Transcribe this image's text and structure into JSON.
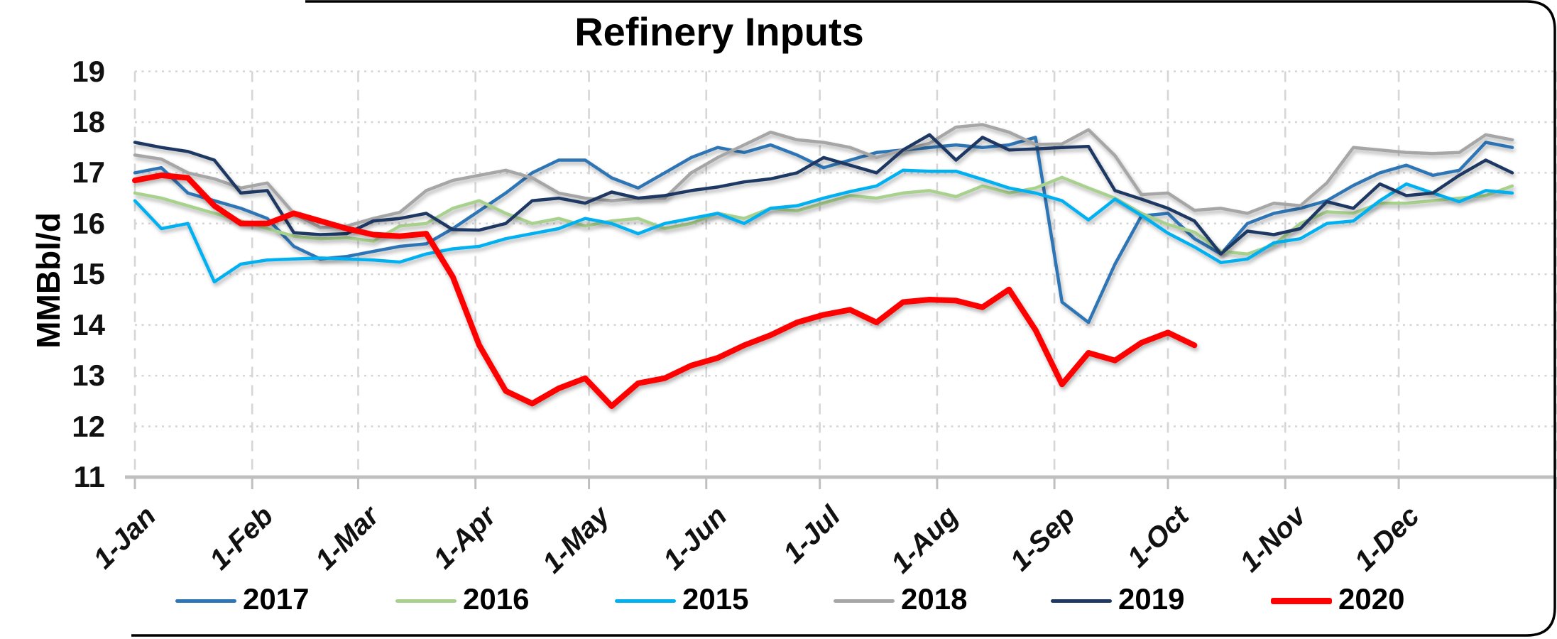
{
  "title": "Refinery Inputs",
  "y_axis_label": "MMBbl/d",
  "chart_data": {
    "type": "line",
    "title": "Refinery Inputs",
    "xlabel": "",
    "ylabel": "MMBbl/d",
    "ylim": [
      11,
      19
    ],
    "y_ticks": [
      19,
      18,
      17,
      16,
      15,
      14,
      13,
      12,
      11
    ],
    "x_tick_labels": [
      "1-Jan",
      "1-Feb",
      "1-Mar",
      "1-Apr",
      "1-May",
      "1-Jun",
      "1-Jul",
      "1-Aug",
      "1-Sep",
      "1-Oct",
      "1-Nov",
      "1-Dec"
    ],
    "month_start_weeks": [
      0,
      4.4286,
      8.4286,
      12.857,
      17.143,
      21.571,
      25.857,
      30.286,
      34.714,
      39,
      43.429,
      47.714
    ],
    "x_unit": "weeks (weekly data, Jan 1 = week 0)",
    "grid": {
      "horizontal": "dotted",
      "vertical": "dashed-at-month-starts"
    },
    "legend_position": "bottom",
    "axis_color": "#BFBFBF",
    "grid_color": "#D6D6D6",
    "series": [
      {
        "name": "2017",
        "color": "#2E75B6",
        "width": 4.5,
        "values": [
          17.0,
          17.1,
          16.6,
          16.45,
          16.3,
          16.1,
          15.55,
          15.3,
          15.35,
          15.45,
          15.55,
          15.6,
          15.9,
          16.25,
          16.6,
          17.0,
          17.25,
          17.25,
          16.9,
          16.7,
          17.0,
          17.3,
          17.5,
          17.4,
          17.55,
          17.35,
          17.1,
          17.25,
          17.4,
          17.45,
          17.5,
          17.55,
          17.5,
          17.55,
          17.7,
          14.45,
          14.05,
          15.2,
          16.15,
          16.2,
          15.7,
          15.4,
          16.0,
          16.2,
          16.3,
          16.45,
          16.75,
          17.0,
          17.15,
          16.95,
          17.05,
          17.6,
          17.5
        ]
      },
      {
        "name": "2016",
        "color": "#A9D18E",
        "width": 4.5,
        "values": [
          16.6,
          16.5,
          16.35,
          16.2,
          16.05,
          15.9,
          15.75,
          15.7,
          15.72,
          15.65,
          15.95,
          16.0,
          16.3,
          16.45,
          16.2,
          16.0,
          16.1,
          15.95,
          16.05,
          16.1,
          15.9,
          16.0,
          16.2,
          16.1,
          16.3,
          16.25,
          16.4,
          16.55,
          16.5,
          16.6,
          16.65,
          16.53,
          16.74,
          16.6,
          16.7,
          16.91,
          16.7,
          16.5,
          16.2,
          15.98,
          15.83,
          15.45,
          15.4,
          15.58,
          16.0,
          16.23,
          16.2,
          16.4,
          16.4,
          16.45,
          16.5,
          16.55,
          16.74
        ]
      },
      {
        "name": "2015",
        "color": "#00B0F0",
        "width": 4.5,
        "values": [
          16.45,
          15.9,
          16.0,
          14.85,
          15.2,
          15.28,
          15.3,
          15.32,
          15.3,
          15.28,
          15.24,
          15.4,
          15.5,
          15.55,
          15.7,
          15.8,
          15.9,
          16.1,
          16.0,
          15.8,
          16.0,
          16.1,
          16.2,
          16.0,
          16.3,
          16.35,
          16.5,
          16.63,
          16.74,
          17.05,
          17.03,
          17.03,
          16.87,
          16.7,
          16.6,
          16.45,
          16.07,
          16.48,
          16.16,
          15.81,
          15.54,
          15.23,
          15.3,
          15.62,
          15.7,
          16.0,
          16.05,
          16.45,
          16.78,
          16.6,
          16.43,
          16.65,
          16.6
        ]
      },
      {
        "name": "2018",
        "color": "#A6A6A6",
        "width": 4.5,
        "values": [
          17.35,
          17.27,
          17.0,
          16.88,
          16.7,
          16.8,
          16.2,
          15.92,
          15.95,
          16.1,
          16.22,
          16.65,
          16.85,
          16.95,
          17.05,
          16.9,
          16.6,
          16.5,
          16.45,
          16.5,
          16.5,
          17.0,
          17.3,
          17.55,
          17.8,
          17.65,
          17.6,
          17.5,
          17.3,
          17.45,
          17.58,
          17.9,
          17.95,
          17.8,
          17.56,
          17.57,
          17.85,
          17.34,
          16.57,
          16.6,
          16.26,
          16.3,
          16.2,
          16.4,
          16.35,
          16.8,
          17.5,
          17.45,
          17.4,
          17.38,
          17.4,
          17.75,
          17.65
        ]
      },
      {
        "name": "2019",
        "color": "#1F3864",
        "width": 4.5,
        "values": [
          17.6,
          17.5,
          17.42,
          17.25,
          16.6,
          16.65,
          15.82,
          15.78,
          15.8,
          16.05,
          16.1,
          16.2,
          15.88,
          15.87,
          16.0,
          16.45,
          16.5,
          16.4,
          16.62,
          16.5,
          16.55,
          16.65,
          16.72,
          16.82,
          16.88,
          17.0,
          17.3,
          17.15,
          17.0,
          17.45,
          17.75,
          17.25,
          17.7,
          17.45,
          17.47,
          17.5,
          17.52,
          16.65,
          16.48,
          16.3,
          16.05,
          15.4,
          15.85,
          15.78,
          15.9,
          16.43,
          16.3,
          16.78,
          16.55,
          16.6,
          16.95,
          17.25,
          17.0
        ]
      },
      {
        "name": "2020",
        "color": "#FF0000",
        "width": 8,
        "values": [
          16.85,
          16.95,
          16.9,
          16.35,
          16.0,
          16.0,
          16.2,
          16.05,
          15.9,
          15.78,
          15.75,
          15.8,
          14.95,
          13.6,
          12.7,
          12.45,
          12.75,
          12.95,
          12.4,
          12.85,
          12.95,
          13.2,
          13.35,
          13.6,
          13.8,
          14.05,
          14.2,
          14.3,
          14.05,
          14.45,
          14.5,
          14.48,
          14.35,
          14.7,
          13.9,
          12.83,
          13.45,
          13.3,
          13.65,
          13.85,
          13.6
        ]
      }
    ]
  },
  "legend": {
    "items": [
      {
        "label": "2017",
        "color": "#2E75B6",
        "thickness": 5
      },
      {
        "label": "2016",
        "color": "#A9D18E",
        "thickness": 5
      },
      {
        "label": "2015",
        "color": "#00B0F0",
        "thickness": 5
      },
      {
        "label": "2018",
        "color": "#A6A6A6",
        "thickness": 5
      },
      {
        "label": "2019",
        "color": "#1F3864",
        "thickness": 5
      },
      {
        "label": "2020",
        "color": "#FF0000",
        "thickness": 9
      }
    ]
  }
}
